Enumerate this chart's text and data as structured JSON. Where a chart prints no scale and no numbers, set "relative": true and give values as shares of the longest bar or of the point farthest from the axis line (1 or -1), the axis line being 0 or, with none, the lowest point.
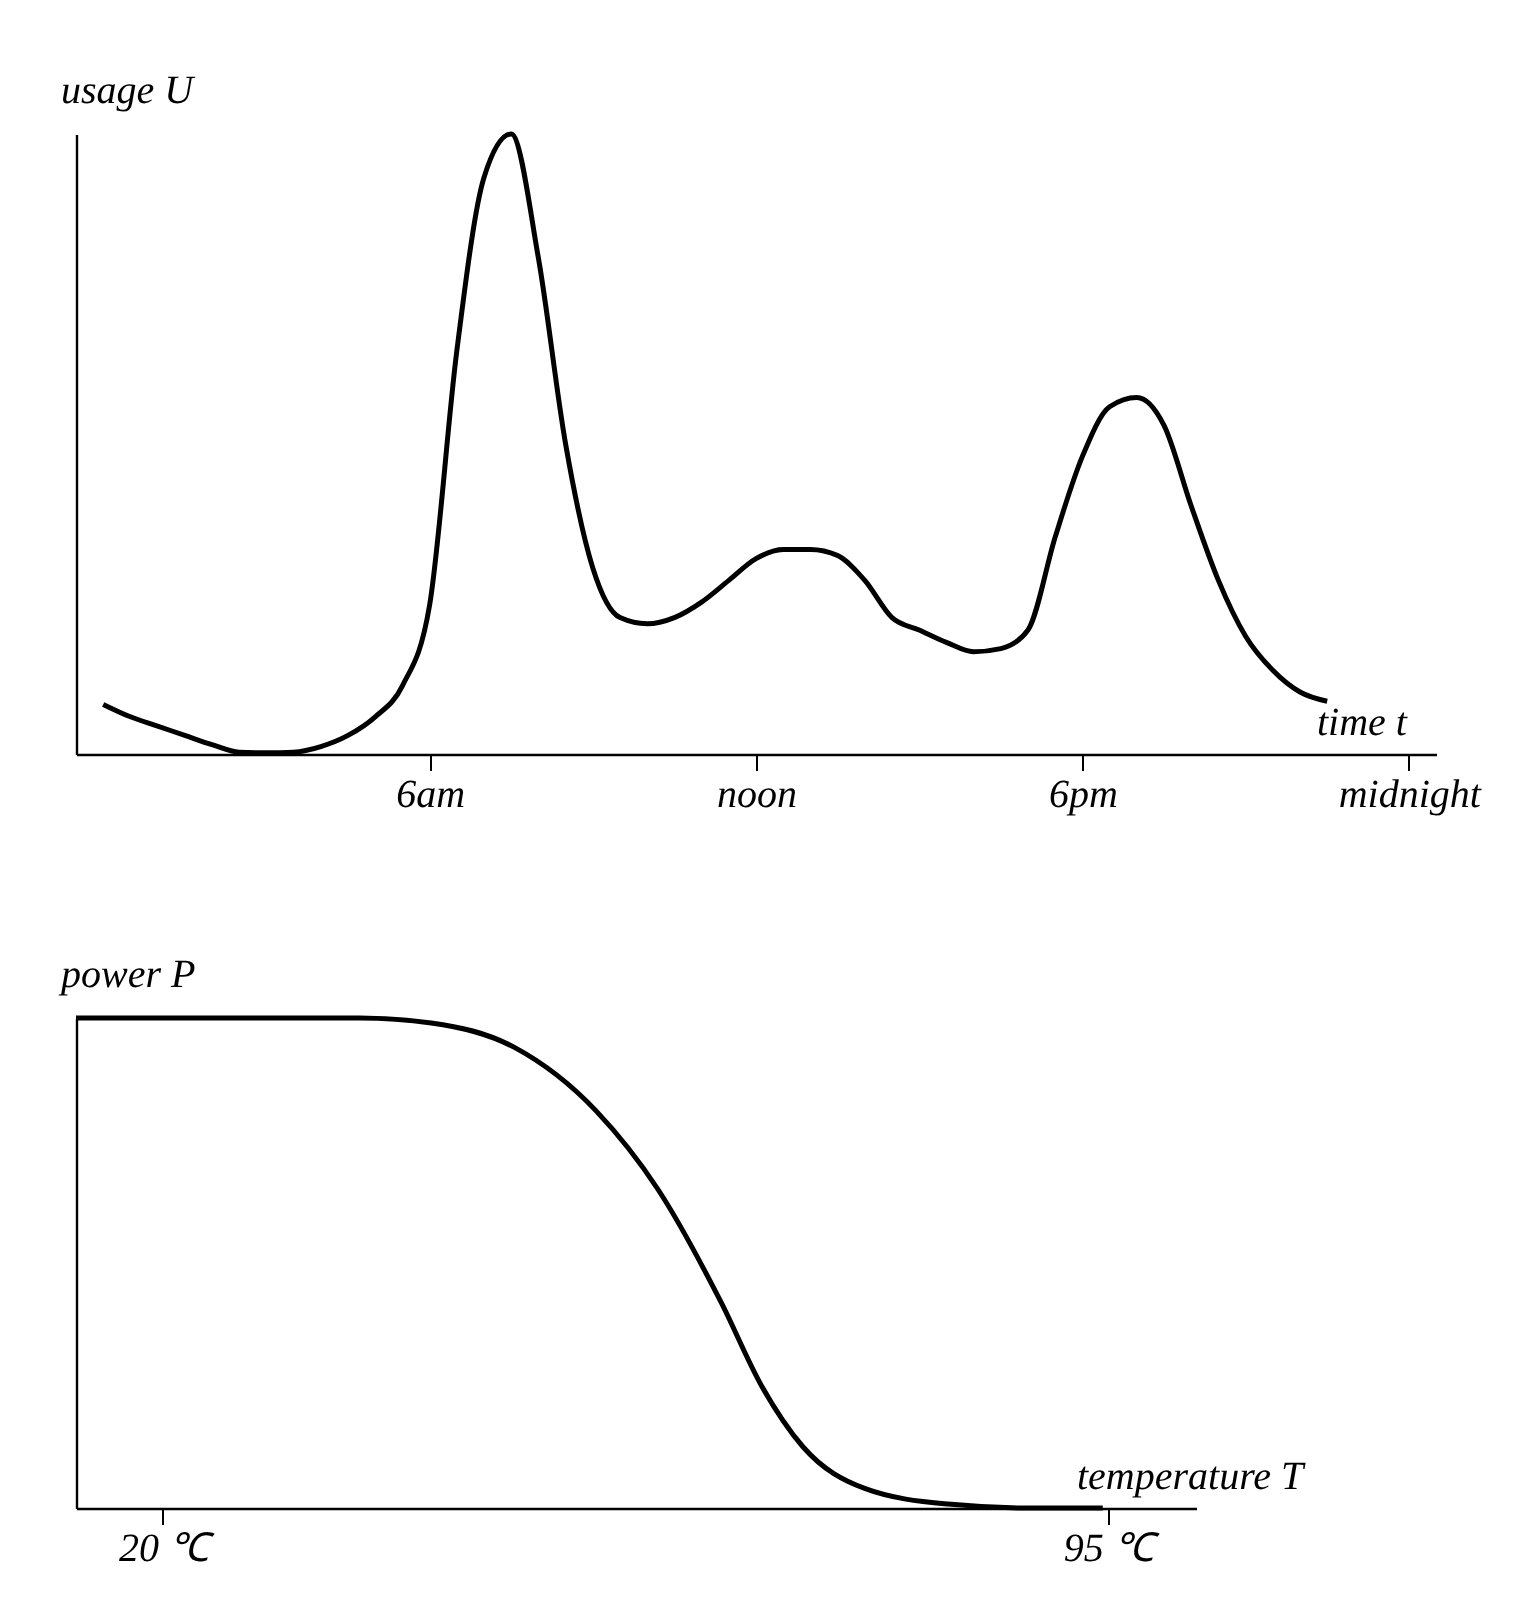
{
  "chart_data": [
    {
      "type": "line",
      "ylabel": "usage U",
      "xlabel": "time t",
      "relative": true,
      "tick_labels": "x",
      "categories": [
        null,
        null,
        null,
        null,
        null,
        null,
        null,
        null,
        null,
        null,
        null,
        null,
        "6am",
        null,
        null,
        null,
        null,
        null,
        null,
        null,
        null,
        null,
        null,
        null,
        "noon",
        null,
        null,
        null,
        null,
        null,
        null,
        null,
        null,
        null,
        null,
        null,
        "6pm",
        null,
        null,
        null,
        null,
        null,
        null,
        null,
        null,
        null,
        null,
        null,
        "midnight"
      ],
      "values": [
        0.08,
        0.06,
        0.045,
        0.03,
        0.015,
        0.003,
        0.002,
        0.003,
        0.012,
        0.03,
        0.06,
        0.11,
        0.24,
        0.65,
        0.93,
        1.0,
        0.8,
        0.5,
        0.3,
        0.22,
        0.21,
        0.22,
        0.245,
        0.28,
        0.315,
        0.33,
        0.33,
        0.32,
        0.28,
        0.22,
        0.2,
        0.18,
        0.165,
        0.17,
        0.2,
        0.35,
        0.48,
        0.56,
        0.575,
        0.53,
        0.4,
        0.28,
        0.19,
        0.135,
        0.1,
        0.085,
        null,
        null,
        null
      ]
    },
    {
      "type": "line",
      "ylabel": "power P",
      "xlabel": "temperature T",
      "relative": true,
      "tick_labels": "x",
      "xlim": [
        13.1,
        102
      ],
      "xticks": [
        {
          "value": 20,
          "label": "20 ℃"
        },
        {
          "value": 95,
          "label": "95 ℃"
        }
      ],
      "x": [
        13.1,
        35.6,
        41.3,
        47.9,
        54.4,
        59.3,
        64.3,
        67.5,
        70.8,
        75.7,
        82.3,
        88.8,
        94.6
      ],
      "values": [
        1,
        1,
        0.99,
        0.94,
        0.81,
        0.65,
        0.42,
        0.25,
        0.125,
        0.04,
        0.008,
        0,
        0
      ]
    }
  ]
}
